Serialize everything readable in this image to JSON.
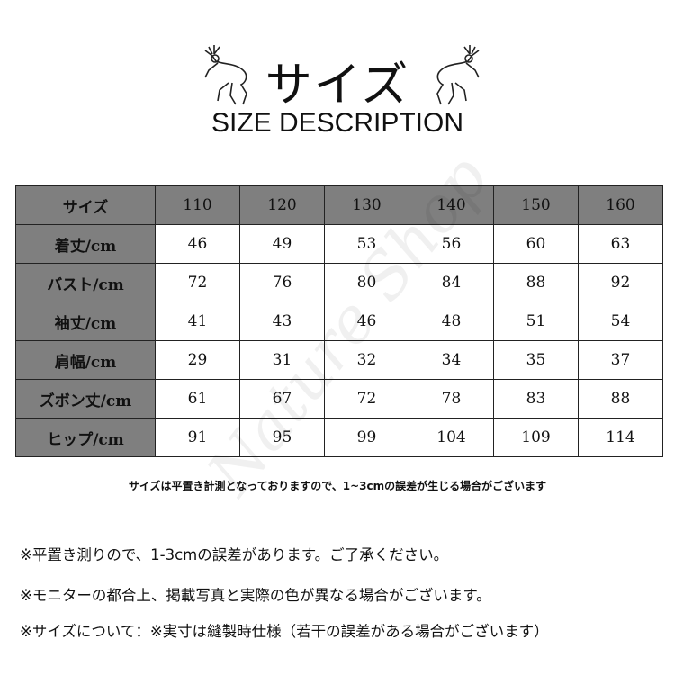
{
  "title": "サイズ",
  "subtitle": "SIZE DESCRIPTION",
  "watermark": "Nature Shop",
  "table": {
    "header": [
      "サイズ",
      "110",
      "120",
      "130",
      "140",
      "150",
      "160"
    ],
    "rows": [
      {
        "label": "着丈/cm",
        "values": [
          "46",
          "49",
          "53",
          "56",
          "60",
          "63"
        ]
      },
      {
        "label": "バスト/cm",
        "values": [
          "72",
          "76",
          "80",
          "84",
          "88",
          "92"
        ]
      },
      {
        "label": "袖丈/cm",
        "values": [
          "41",
          "43",
          "46",
          "48",
          "51",
          "54"
        ]
      },
      {
        "label": "肩幅/cm",
        "values": [
          "29",
          "31",
          "32",
          "34",
          "35",
          "37"
        ]
      },
      {
        "label": "ズボン丈/cm",
        "values": [
          "61",
          "67",
          "72",
          "78",
          "83",
          "88"
        ]
      },
      {
        "label": "ヒップ/cm",
        "values": [
          "91",
          "95",
          "99",
          "104",
          "109",
          "114"
        ]
      }
    ]
  },
  "note": "サイズは平置き計測となっておりますので、1~3cmの誤差が生じる場合がございます",
  "lines": [
    "※平置き測りので、1-3cmの誤差があります。ご了承ください。",
    "※モニターの都合上、掲載写真と実際の色が異なる場合がございます。",
    "※サイズについて：※実寸は縫製時仕様（若干の誤差がある場合がございます）"
  ]
}
